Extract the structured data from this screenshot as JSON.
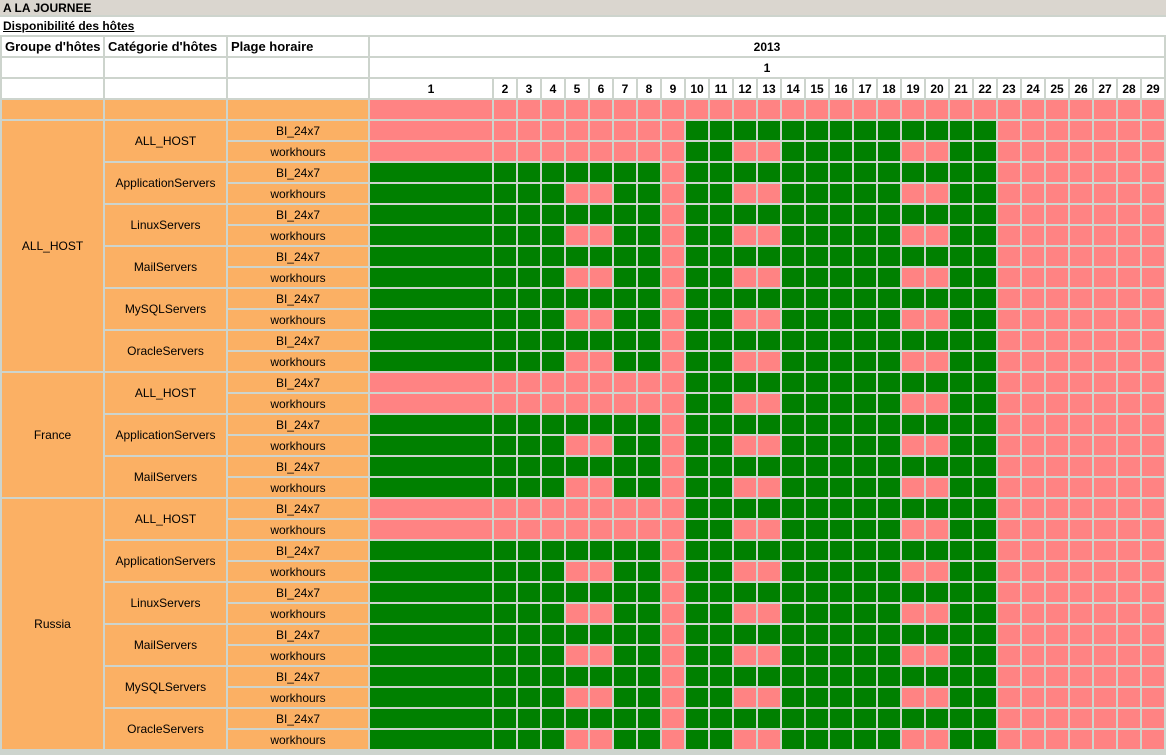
{
  "header": {
    "period_title": "A LA JOURNEE",
    "report_title": "Disponibilité des hôtes"
  },
  "table": {
    "column_headers": {
      "host_group": "Groupe d'hôtes",
      "host_category": "Catégorie d'hôtes",
      "time_range": "Plage horaire"
    }
  },
  "colors": {
    "available_green": "#008000",
    "unavailable_pink": "#FF8383",
    "label_orange": "#FBB064",
    "grid_line_gray": "#CDD4CD",
    "title_bar_gray": "#DAD6CF",
    "header_cell_white": "#FFFFFF"
  },
  "chart_data": {
    "type": "heatmap",
    "title": "Disponibilité des hôtes",
    "period_mode": "A LA JOURNEE",
    "year": "2013",
    "month": "1",
    "days": [
      1,
      2,
      3,
      4,
      5,
      6,
      7,
      8,
      9,
      10,
      11,
      12,
      13,
      14,
      15,
      16,
      17,
      18,
      19,
      20,
      21,
      22,
      23,
      24,
      25,
      26,
      27,
      28,
      29
    ],
    "cell_encoding": {
      "G": "#008000",
      "R": "#FF8383"
    },
    "time_range_labels": [
      "BI_24x7",
      "workhours"
    ],
    "spacer_row_days": "RRRRRRRRRRRRRRRRRRRRRRRRRRRRR",
    "groups": [
      {
        "name": "ALL_HOST",
        "categories": [
          {
            "name": "ALL_HOST",
            "rows": [
              {
                "time_range": "BI_24x7",
                "days": "RRRRRRRRRGGGGGGGGGGGGGRRRRRRR"
              },
              {
                "time_range": "workhours",
                "days": "RRRRRRRRRGGRRGGGGGRRGGRRRRRRR"
              }
            ]
          },
          {
            "name": "ApplicationServers",
            "rows": [
              {
                "time_range": "BI_24x7",
                "days": "GGGGGGGGRGGGGGGGGGGGGGRRRRRRR"
              },
              {
                "time_range": "workhours",
                "days": "GGGGRRGGRGGRRGGGGGRRGGRRRRRRR"
              }
            ]
          },
          {
            "name": "LinuxServers",
            "rows": [
              {
                "time_range": "BI_24x7",
                "days": "GGGGGGGGRGGGGGGGGGGGGGRRRRRRR"
              },
              {
                "time_range": "workhours",
                "days": "GGGGRRGGRGGRRGGGGGRRGGRRRRRRR"
              }
            ]
          },
          {
            "name": "MailServers",
            "rows": [
              {
                "time_range": "BI_24x7",
                "days": "GGGGGGGGRGGGGGGGGGGGGGRRRRRRR"
              },
              {
                "time_range": "workhours",
                "days": "GGGGRRGGRGGRRGGGGGRRGGRRRRRRR"
              }
            ]
          },
          {
            "name": "MySQLServers",
            "rows": [
              {
                "time_range": "BI_24x7",
                "days": "GGGGGGGGRGGGGGGGGGGGGGRRRRRRR"
              },
              {
                "time_range": "workhours",
                "days": "GGGGRRGGRGGRRGGGGGRRGGRRRRRRR"
              }
            ]
          },
          {
            "name": "OracleServers",
            "rows": [
              {
                "time_range": "BI_24x7",
                "days": "GGGGGGGGRGGGGGGGGGGGGGRRRRRRR"
              },
              {
                "time_range": "workhours",
                "days": "GGGGRRGGRGGRRGGGGGRRGGRRRRRRR"
              }
            ]
          }
        ]
      },
      {
        "name": "France",
        "categories": [
          {
            "name": "ALL_HOST",
            "rows": [
              {
                "time_range": "BI_24x7",
                "days": "RRRRRRRRRGGGGGGGGGGGGGRRRRRRR"
              },
              {
                "time_range": "workhours",
                "days": "RRRRRRRRRGGRRGGGGGRRGGRRRRRRR"
              }
            ]
          },
          {
            "name": "ApplicationServers",
            "rows": [
              {
                "time_range": "BI_24x7",
                "days": "GGGGGGGGRGGGGGGGGGGGGGRRRRRRR"
              },
              {
                "time_range": "workhours",
                "days": "GGGGRRGGRGGRRGGGGGRRGGRRRRRRR"
              }
            ]
          },
          {
            "name": "MailServers",
            "rows": [
              {
                "time_range": "BI_24x7",
                "days": "GGGGGGGGRGGGGGGGGGGGGGRRRRRRR"
              },
              {
                "time_range": "workhours",
                "days": "GGGGRRGGRGGRRGGGGGRRGGRRRRRRR"
              }
            ]
          }
        ]
      },
      {
        "name": "Russia",
        "categories": [
          {
            "name": "ALL_HOST",
            "rows": [
              {
                "time_range": "BI_24x7",
                "days": "RRRRRRRRRGGGGGGGGGGGGGRRRRRRR"
              },
              {
                "time_range": "workhours",
                "days": "RRRRRRRRRGGRRGGGGGRRGGRRRRRRR"
              }
            ]
          },
          {
            "name": "ApplicationServers",
            "rows": [
              {
                "time_range": "BI_24x7",
                "days": "GGGGGGGGRGGGGGGGGGGGGGRRRRRRR"
              },
              {
                "time_range": "workhours",
                "days": "GGGGRRGGRGGRRGGGGGRRGGRRRRRRR"
              }
            ]
          },
          {
            "name": "LinuxServers",
            "rows": [
              {
                "time_range": "BI_24x7",
                "days": "GGGGGGGGRGGGGGGGGGGGGGRRRRRRR"
              },
              {
                "time_range": "workhours",
                "days": "GGGGRRGGRGGRRGGGGGRRGGRRRRRRR"
              }
            ]
          },
          {
            "name": "MailServers",
            "rows": [
              {
                "time_range": "BI_24x7",
                "days": "GGGGGGGGRGGGGGGGGGGGGGRRRRRRR"
              },
              {
                "time_range": "workhours",
                "days": "GGGGRRGGRGGRRGGGGGRRGGRRRRRRR"
              }
            ]
          },
          {
            "name": "MySQLServers",
            "rows": [
              {
                "time_range": "BI_24x7",
                "days": "GGGGGGGGRGGGGGGGGGGGGGRRRRRRR"
              },
              {
                "time_range": "workhours",
                "days": "GGGGRRGGRGGRRGGGGGRRGGRRRRRRR"
              }
            ]
          },
          {
            "name": "OracleServers",
            "rows": [
              {
                "time_range": "BI_24x7",
                "days": "GGGGGGGGRGGGGGGGGGGGGGRRRRRRR"
              },
              {
                "time_range": "workhours",
                "days": "GGGGRRGGRGGRRGGGGGRRGGRRRRRRR"
              }
            ]
          }
        ]
      }
    ]
  }
}
